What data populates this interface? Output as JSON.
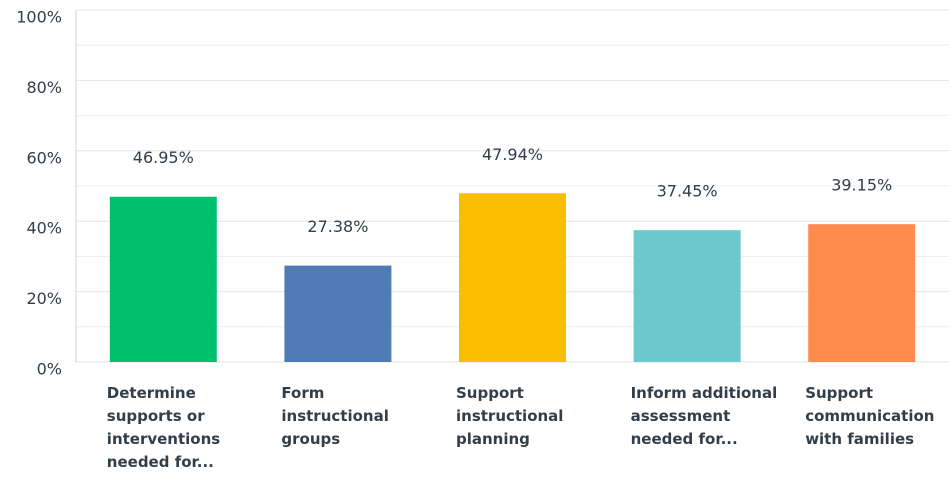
{
  "chart_data": {
    "type": "bar",
    "categories": [
      "Determine supports or interventions needed for...",
      "Form instructional groups",
      "Support instructional planning",
      "Inform additional assessment needed for...",
      "Support communication with families"
    ],
    "values": [
      46.95,
      27.38,
      47.94,
      37.45,
      39.15
    ],
    "value_labels": [
      "46.95%",
      "27.38%",
      "47.94%",
      "37.45%",
      "39.15%"
    ],
    "colors": [
      "#00bf6f",
      "#507cb6",
      "#f9be00",
      "#6bc8cd",
      "#ff8b4f"
    ],
    "ylim": [
      0,
      100
    ],
    "yticks": [
      {
        "value": 0,
        "label": "0%"
      },
      {
        "value": 20,
        "label": "20%"
      },
      {
        "value": 40,
        "label": "40%"
      },
      {
        "value": 60,
        "label": "60%"
      },
      {
        "value": 80,
        "label": "80%"
      },
      {
        "value": 100,
        "label": "100%"
      }
    ],
    "minor_yticks": [
      10,
      30,
      50,
      70,
      90
    ],
    "grid": true
  }
}
